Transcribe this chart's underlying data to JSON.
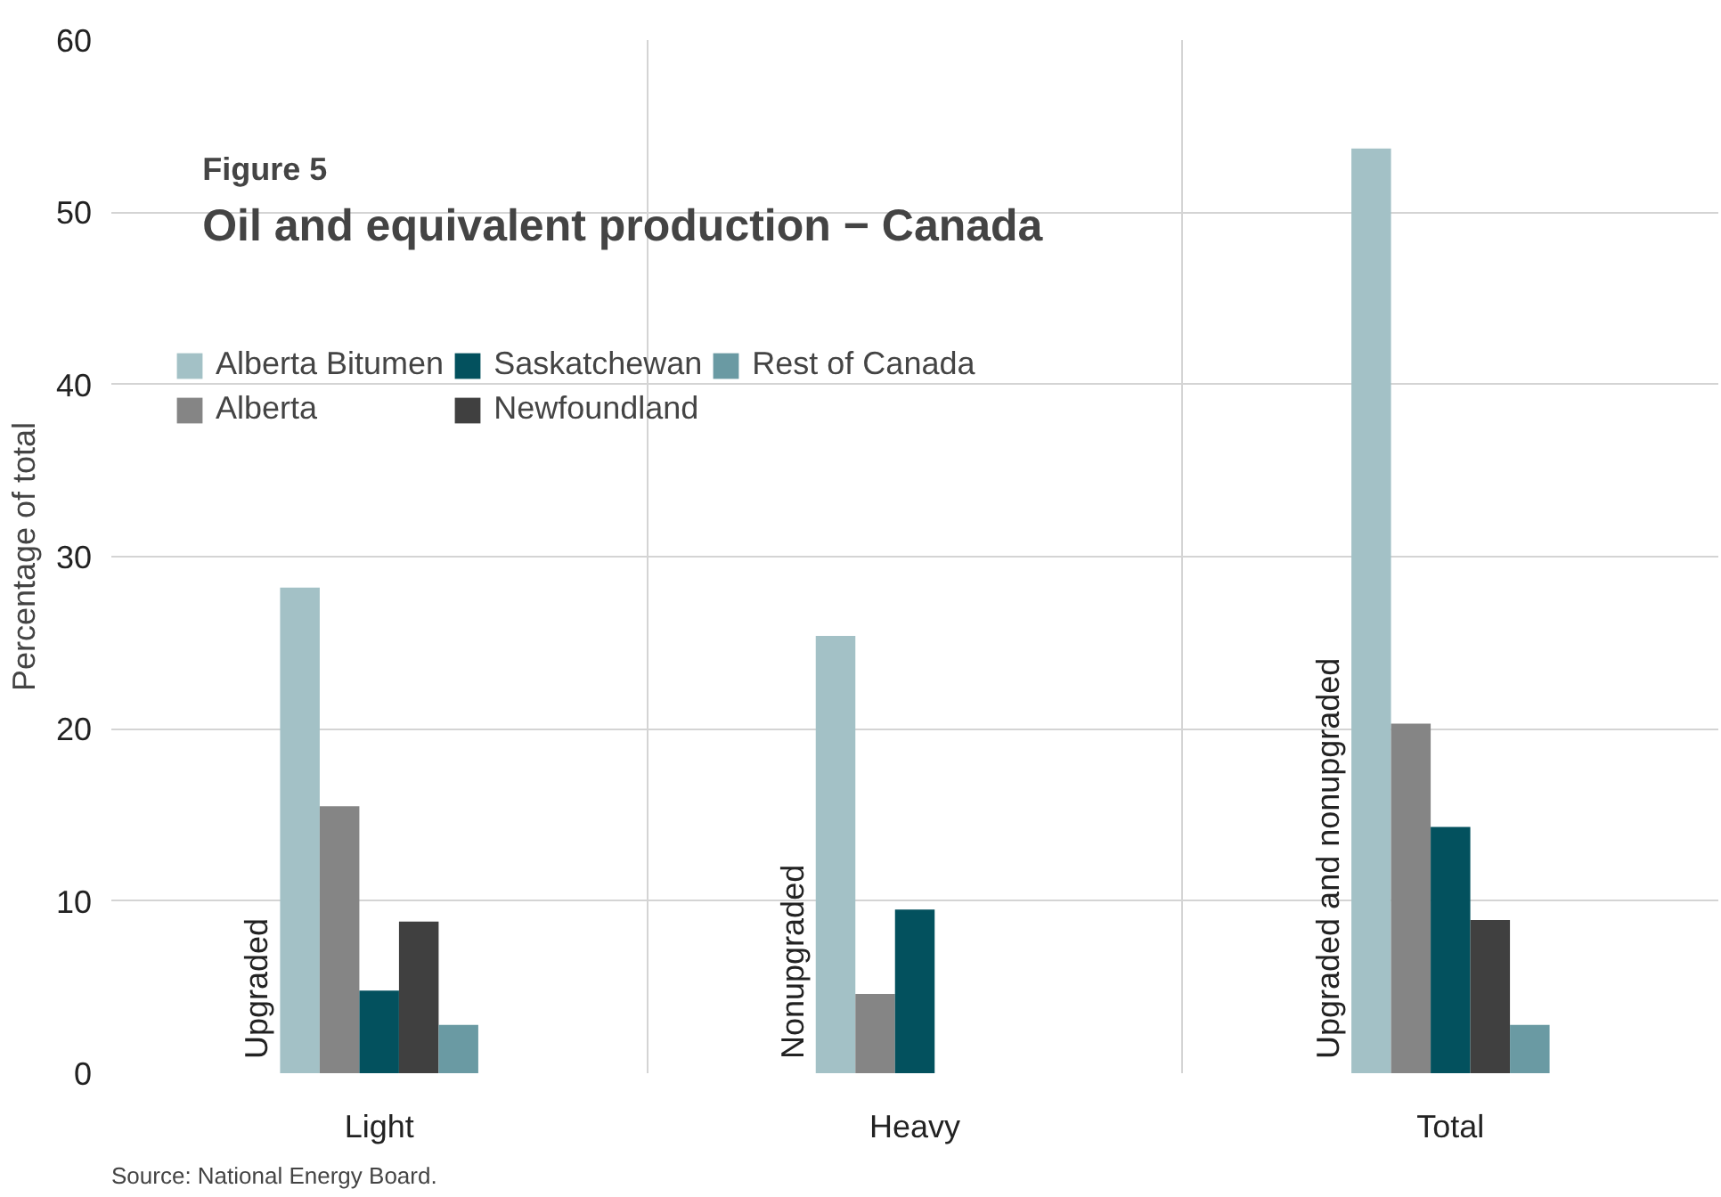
{
  "chart_data": {
    "type": "bar",
    "subtitle": "Figure 5",
    "title": "Oil and equivalent production − Canada",
    "ylabel": "Percentage of total",
    "categories": [
      "Light",
      "Heavy",
      "Total"
    ],
    "series": [
      {
        "name": "Alberta Bitumen",
        "color": "#a3c1c6",
        "values": [
          28.2,
          25.4,
          53.7
        ]
      },
      {
        "name": "Alberta",
        "color": "#858585",
        "values": [
          15.5,
          4.6,
          20.3
        ]
      },
      {
        "name": "Saskatchewan",
        "color": "#03515e",
        "values": [
          4.8,
          9.5,
          14.3
        ]
      },
      {
        "name": "Newfoundland",
        "color": "#404040",
        "values": [
          8.8,
          null,
          8.9
        ]
      },
      {
        "name": "Rest of Canada",
        "color": "#6a9aa3",
        "values": [
          2.8,
          null,
          2.8
        ]
      }
    ],
    "ylim": [
      0,
      60
    ],
    "yticks": [
      0,
      10,
      20,
      30,
      40,
      50,
      60
    ],
    "grid": true,
    "legend": "top left",
    "annotations": [
      "Upgraded",
      "Nonupgraded",
      "Upgraded and nonupgraded",
      "Source: National Energy Board."
    ]
  }
}
